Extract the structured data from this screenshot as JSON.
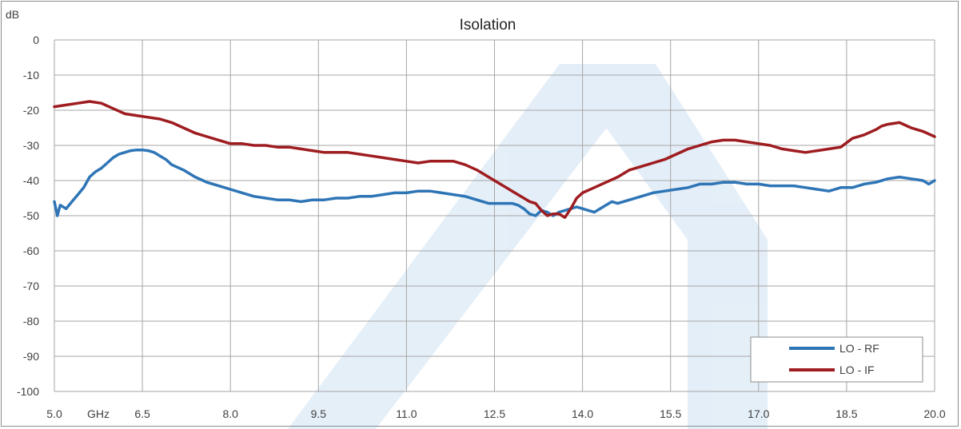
{
  "chart_data": {
    "type": "line",
    "title": "Isolation",
    "ylabel": "dB",
    "xlabel": "GHz",
    "xlim": [
      5.0,
      20.0
    ],
    "ylim": [
      -100,
      0
    ],
    "x_ticks": [
      "5.0",
      "6.5",
      "8.0",
      "9.5",
      "11.0",
      "12.5",
      "14.0",
      "15.5",
      "17.0",
      "18.5",
      "20.0"
    ],
    "y_ticks": [
      "0",
      "-10",
      "-20",
      "-30",
      "-40",
      "-50",
      "-60",
      "-70",
      "-80",
      "-90",
      "-100"
    ],
    "grid": true,
    "legend_position": "bottom-right",
    "series": [
      {
        "name": "LO - RF",
        "color": "#2e75b6",
        "x": [
          5.0,
          5.05,
          5.1,
          5.2,
          5.3,
          5.4,
          5.5,
          5.6,
          5.7,
          5.8,
          5.9,
          6.0,
          6.1,
          6.2,
          6.3,
          6.4,
          6.5,
          6.6,
          6.7,
          6.8,
          6.9,
          7.0,
          7.2,
          7.4,
          7.6,
          7.8,
          8.0,
          8.2,
          8.4,
          8.6,
          8.8,
          9.0,
          9.2,
          9.4,
          9.6,
          9.8,
          10.0,
          10.2,
          10.4,
          10.6,
          10.8,
          11.0,
          11.2,
          11.4,
          11.6,
          11.8,
          12.0,
          12.2,
          12.4,
          12.6,
          12.8,
          12.9,
          13.0,
          13.1,
          13.2,
          13.3,
          13.4,
          13.5,
          13.6,
          13.7,
          13.8,
          13.9,
          14.0,
          14.1,
          14.2,
          14.3,
          14.4,
          14.5,
          14.6,
          14.8,
          15.0,
          15.2,
          15.4,
          15.6,
          15.8,
          16.0,
          16.2,
          16.4,
          16.6,
          16.8,
          17.0,
          17.2,
          17.4,
          17.6,
          17.8,
          18.0,
          18.2,
          18.4,
          18.6,
          18.8,
          19.0,
          19.2,
          19.4,
          19.6,
          19.8,
          19.9,
          20.0
        ],
        "values": [
          -46,
          -50,
          -47,
          -48,
          -46,
          -44,
          -42,
          -39,
          -37.5,
          -36.5,
          -35,
          -33.5,
          -32.5,
          -32,
          -31.5,
          -31.3,
          -31.3,
          -31.5,
          -32,
          -33,
          -34,
          -35.5,
          -37,
          -39,
          -40.5,
          -41.5,
          -42.5,
          -43.5,
          -44.5,
          -45,
          -45.5,
          -45.5,
          -46,
          -45.5,
          -45.5,
          -45,
          -45,
          -44.5,
          -44.5,
          -44,
          -43.5,
          -43.5,
          -43,
          -43,
          -43.5,
          -44,
          -44.5,
          -45.5,
          -46.5,
          -46.5,
          -46.5,
          -47,
          -48,
          -49.5,
          -50,
          -48.5,
          -49,
          -50,
          -49,
          -48.5,
          -48,
          -47.5,
          -48,
          -48.5,
          -49,
          -48,
          -47,
          -46,
          -46.5,
          -45.5,
          -44.5,
          -43.5,
          -43,
          -42.5,
          -42,
          -41,
          -41,
          -40.5,
          -40.5,
          -41,
          -41,
          -41.5,
          -41.5,
          -41.5,
          -42,
          -42.5,
          -43,
          -42,
          -42,
          -41,
          -40.5,
          -39.5,
          -39,
          -39.5,
          -40,
          -41,
          -40
        ]
      },
      {
        "name": "LO - IF",
        "color": "#9e1c20",
        "x": [
          5.0,
          5.2,
          5.4,
          5.6,
          5.8,
          6.0,
          6.2,
          6.4,
          6.6,
          6.8,
          7.0,
          7.2,
          7.4,
          7.6,
          7.8,
          8.0,
          8.2,
          8.4,
          8.6,
          8.8,
          9.0,
          9.2,
          9.4,
          9.6,
          9.8,
          10.0,
          10.2,
          10.4,
          10.6,
          10.8,
          11.0,
          11.2,
          11.4,
          11.6,
          11.8,
          12.0,
          12.2,
          12.4,
          12.6,
          12.8,
          13.0,
          13.1,
          13.2,
          13.3,
          13.4,
          13.5,
          13.6,
          13.7,
          13.8,
          13.9,
          14.0,
          14.2,
          14.4,
          14.6,
          14.8,
          15.0,
          15.2,
          15.4,
          15.6,
          15.8,
          16.0,
          16.2,
          16.4,
          16.6,
          16.8,
          17.0,
          17.2,
          17.4,
          17.6,
          17.8,
          18.0,
          18.2,
          18.4,
          18.6,
          18.8,
          19.0,
          19.1,
          19.2,
          19.4,
          19.6,
          19.8,
          20.0
        ],
        "values": [
          -19,
          -18.5,
          -18,
          -17.5,
          -18,
          -19.5,
          -21,
          -21.5,
          -22,
          -22.5,
          -23.5,
          -25,
          -26.5,
          -27.5,
          -28.5,
          -29.5,
          -29.5,
          -30,
          -30,
          -30.5,
          -30.5,
          -31,
          -31.5,
          -32,
          -32,
          -32,
          -32.5,
          -33,
          -33.5,
          -34,
          -34.5,
          -35,
          -34.5,
          -34.5,
          -34.5,
          -35.5,
          -37,
          -39,
          -41,
          -43,
          -45,
          -46,
          -46.5,
          -48.5,
          -50,
          -49.5,
          -49.5,
          -50.5,
          -48,
          -45,
          -43.5,
          -42,
          -40.5,
          -39,
          -37,
          -36,
          -35,
          -34,
          -32.5,
          -31,
          -30,
          -29,
          -28.5,
          -28.5,
          -29,
          -29.5,
          -30,
          -31,
          -31.5,
          -32,
          -31.5,
          -31,
          -30.5,
          -28,
          -27,
          -25.5,
          -24.5,
          -24,
          -23.5,
          -25,
          -26,
          -27.5
        ]
      }
    ]
  }
}
